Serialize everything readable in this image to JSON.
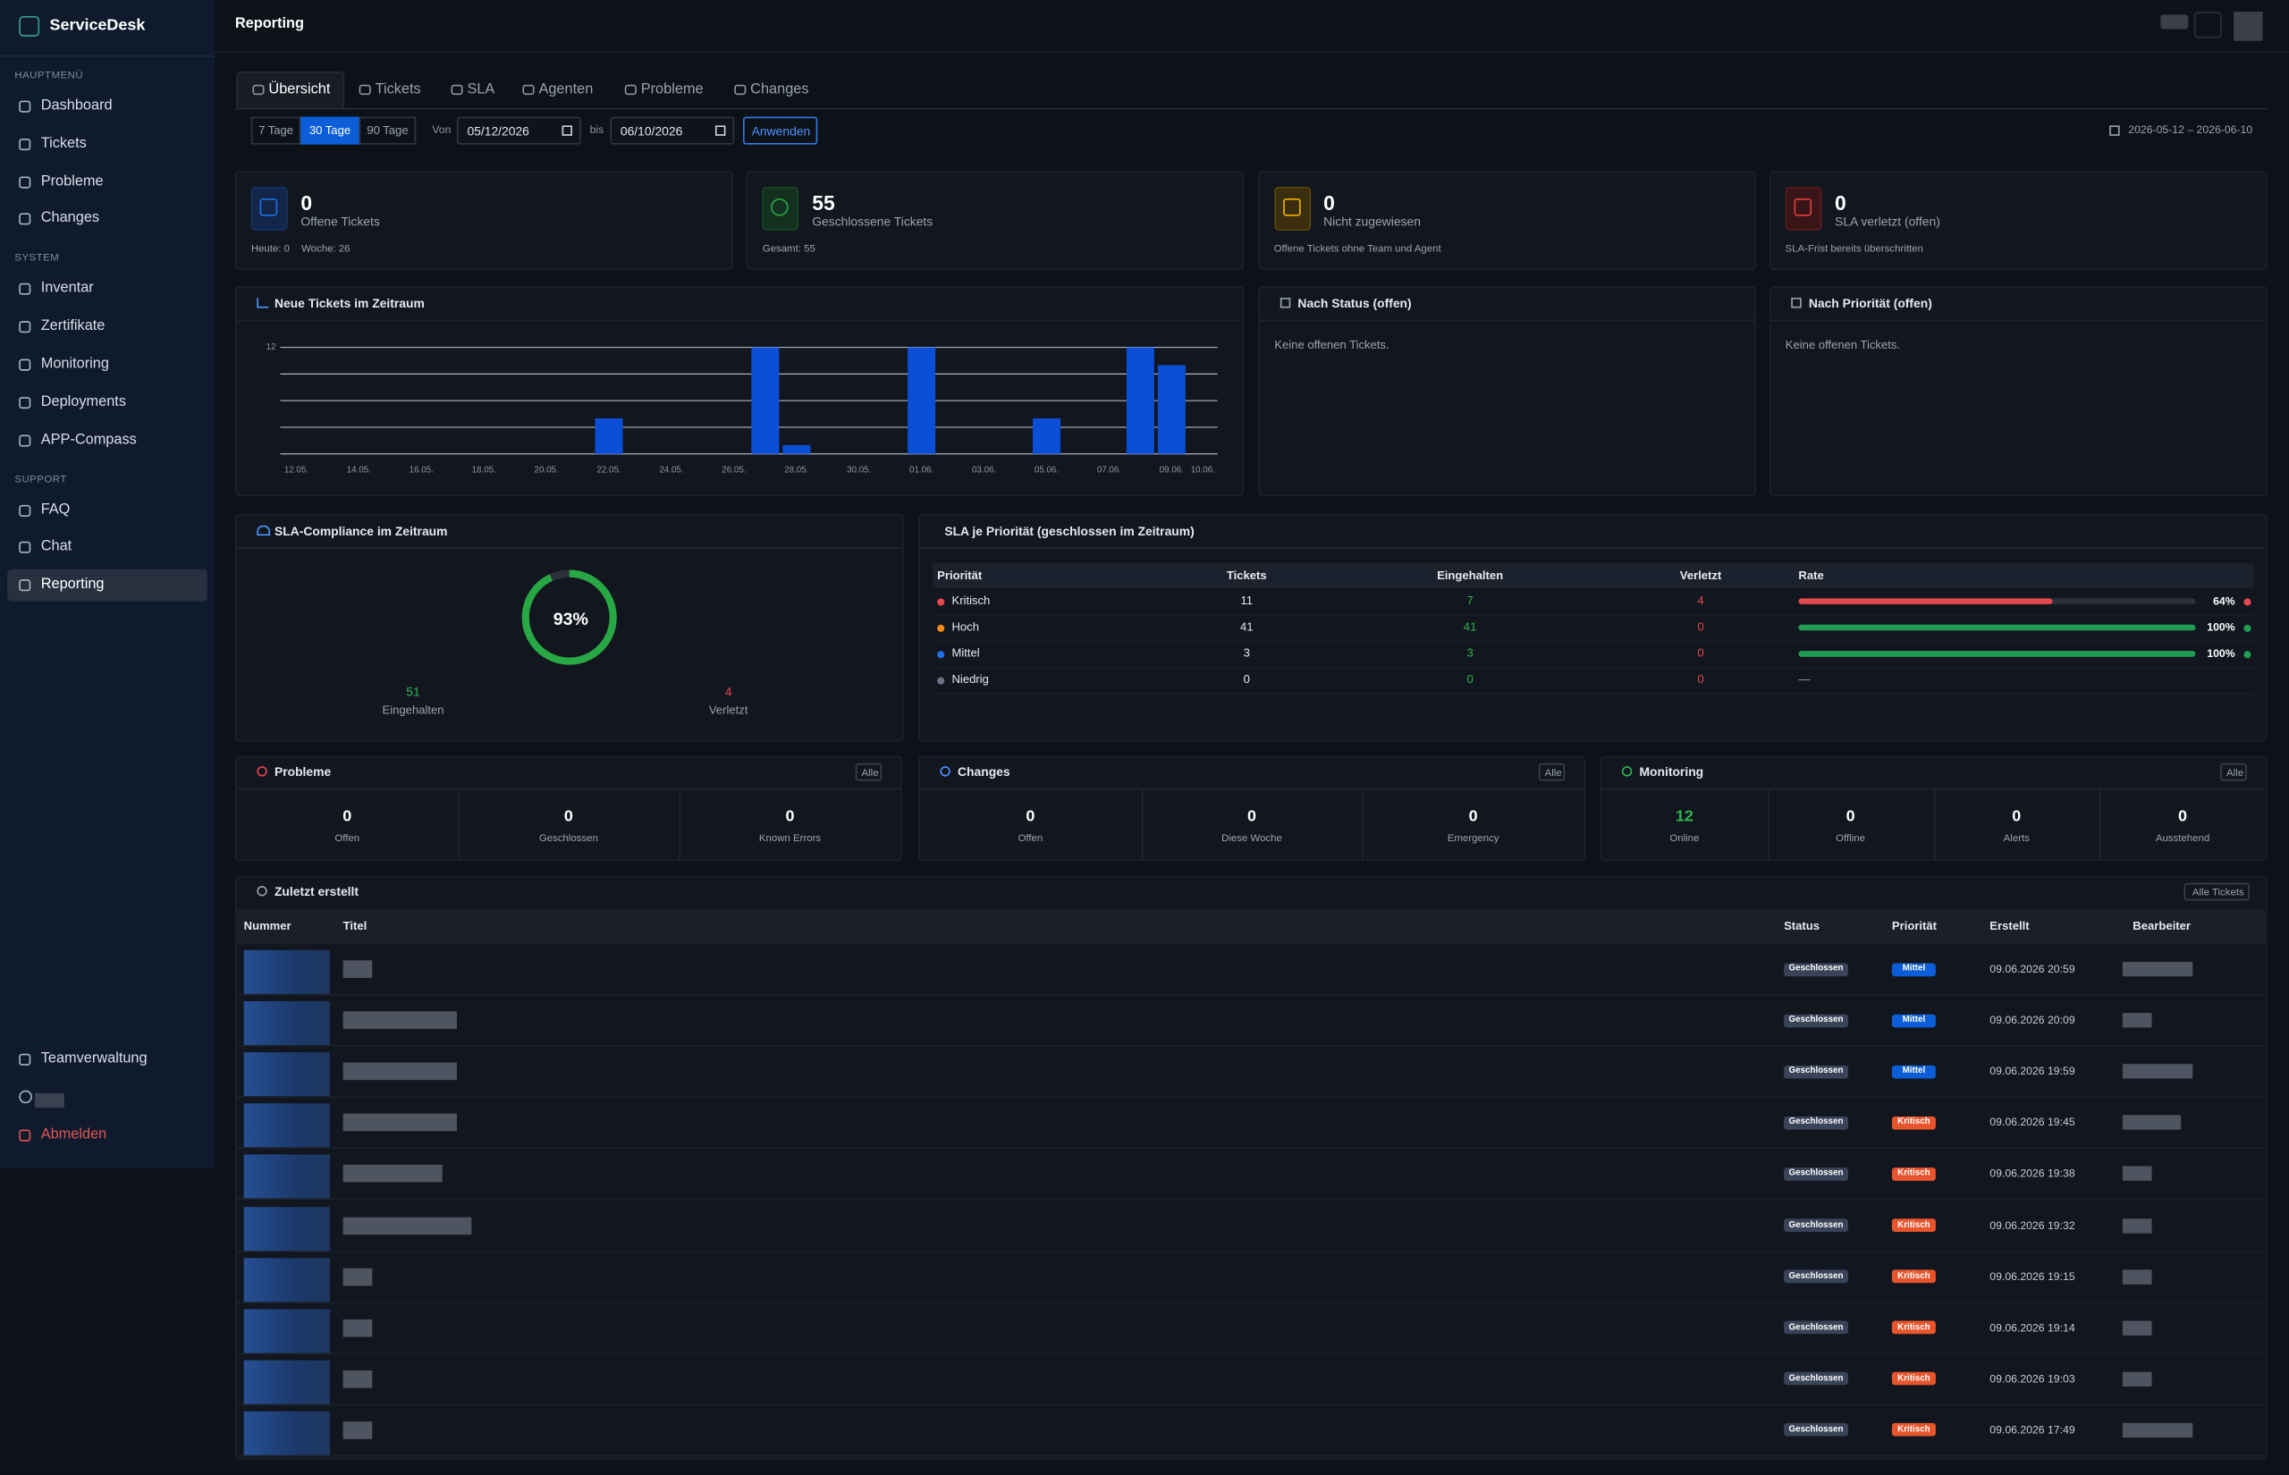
{
  "sidebar": {
    "brand": "ServiceDesk",
    "sections": [
      {
        "label": "HAUPTMENÜ",
        "items": [
          "Dashboard",
          "Tickets",
          "Probleme",
          "Changes"
        ]
      },
      {
        "label": "SYSTEM",
        "items": [
          "Inventar",
          "Zertifikate",
          "Monitoring",
          "Deployments",
          "APP-Compass"
        ]
      },
      {
        "label": "SUPPORT",
        "items": [
          "FAQ",
          "Chat",
          "Reporting"
        ]
      }
    ],
    "active": {
      "section": 2,
      "item": 2
    },
    "footer": {
      "team": "Teamverwaltung",
      "logout": "Abmelden"
    }
  },
  "header": {
    "title": "Reporting"
  },
  "tabs": {
    "items": [
      "Übersicht",
      "Tickets",
      "SLA",
      "Agenten",
      "Probleme",
      "Changes"
    ],
    "active": 0
  },
  "filters": {
    "ranges": [
      "7 Tage",
      "30 Tage",
      "90 Tage"
    ],
    "active": 1,
    "from_label": "Von",
    "from": "05/12/2026",
    "to_label": "bis",
    "to": "06/10/2026",
    "apply": "Anwenden",
    "range_text": "2026-05-12 – 2026-06-10"
  },
  "kpis": [
    {
      "value": 0,
      "label": "Offene Tickets",
      "notes": [
        "Heute: 0",
        "Woche: 26"
      ]
    },
    {
      "value": 55,
      "label": "Geschlossene Tickets",
      "notes": [
        "Gesamt: 55"
      ]
    },
    {
      "value": 0,
      "label": "Nicht zugewiesen",
      "notes": [
        "Offene Tickets ohne Team und Agent"
      ]
    },
    {
      "value": 0,
      "label": "SLA verletzt (offen)",
      "notes": [
        "SLA-Frist bereits überschritten"
      ]
    }
  ],
  "chart_data": {
    "type": "bar",
    "title": "Neue Tickets im Zeitraum",
    "categories": [
      "12.05.",
      null,
      "14.05.",
      null,
      "16.05.",
      null,
      "18.05.",
      null,
      "20.05.",
      null,
      "22.05.",
      null,
      "24.05.",
      null,
      "26.05.",
      null,
      "28.05.",
      null,
      "30.05.",
      null,
      "01.06.",
      null,
      "03.06.",
      null,
      "05.06.",
      null,
      "07.06.",
      null,
      "09.06.",
      "10.06."
    ],
    "values": [
      0,
      0,
      0,
      0,
      0,
      0,
      0,
      0,
      0,
      0,
      4,
      0,
      0,
      0,
      0,
      12,
      1,
      0,
      0,
      0,
      12,
      0,
      0,
      0,
      4,
      0,
      0,
      12,
      10,
      0
    ],
    "color": "#0b4fd6",
    "ylim": [
      0,
      12
    ],
    "yticks": [
      {
        "value": 0,
        "label": null
      },
      {
        "value": 3,
        "label": null
      },
      {
        "value": 6,
        "label": null
      },
      {
        "value": 9,
        "label": null
      },
      12
    ],
    "grid": true
  },
  "status_panel": {
    "title": "Nach Status (offen)",
    "empty": "Keine offenen Tickets."
  },
  "priority_panel": {
    "title": "Nach Priorität (offen)",
    "empty": "Keine offenen Tickets."
  },
  "sla_compliance": {
    "title": "SLA-Compliance im Zeitraum",
    "rate": 93,
    "rate_label": "93%",
    "met": 51,
    "met_label": "Eingehalten",
    "breached": 4,
    "breached_label": "Verletzt"
  },
  "sla_priority": {
    "title": "SLA je Priorität (geschlossen im Zeitraum)",
    "columns": [
      "Priorität",
      "Tickets",
      "Eingehalten",
      "Verletzt",
      "Rate"
    ],
    "rows": [
      {
        "name": "Kritisch",
        "color": "#e5484d",
        "tickets": 11,
        "met": 7,
        "breached": 4,
        "rate": 64,
        "rate_label": "64%"
      },
      {
        "name": "Hoch",
        "color": "#f08c1a",
        "tickets": 41,
        "met": 41,
        "breached": 0,
        "rate": 100,
        "rate_label": "100%"
      },
      {
        "name": "Mittel",
        "color": "#1f6fe5",
        "tickets": 3,
        "met": 3,
        "breached": 0,
        "rate": 100,
        "rate_label": "100%"
      },
      {
        "name": "Niedrig",
        "color": "#6b7385",
        "tickets": 0,
        "met": 0,
        "breached": 0,
        "rate": null,
        "rate_label": "—"
      }
    ]
  },
  "summaries": [
    {
      "title": "Probleme",
      "button": "Alle",
      "stats": [
        {
          "value": 0,
          "label": "Offen"
        },
        {
          "value": 0,
          "label": "Geschlossen"
        },
        {
          "value": 0,
          "label": "Known Errors"
        }
      ]
    },
    {
      "title": "Changes",
      "button": "Alle",
      "stats": [
        {
          "value": 0,
          "label": "Offen"
        },
        {
          "value": 0,
          "label": "Diese Woche"
        },
        {
          "value": 0,
          "label": "Emergency"
        }
      ]
    },
    {
      "title": "Monitoring",
      "button": "Alle",
      "stats": [
        {
          "value": 12,
          "label": "Online"
        },
        {
          "value": 0,
          "label": "Offline"
        },
        {
          "value": 0,
          "label": "Alerts"
        },
        {
          "value": 0,
          "label": "Ausstehend"
        }
      ]
    }
  ],
  "recent": {
    "title": "Zuletzt erstellt",
    "button": "Alle Tickets",
    "columns": [
      "Nummer",
      "Titel",
      "Status",
      "Priorität",
      "Erstellt",
      "Bearbeiter"
    ],
    "rows": [
      {
        "status": "Geschlossen",
        "priority": "Mittel",
        "priority_color": "#0b5ed7",
        "created": "09.06.2026 20:59"
      },
      {
        "status": "Geschlossen",
        "priority": "Mittel",
        "priority_color": "#0b5ed7",
        "created": "09.06.2026 20:09"
      },
      {
        "status": "Geschlossen",
        "priority": "Mittel",
        "priority_color": "#0b5ed7",
        "created": "09.06.2026 19:59"
      },
      {
        "status": "Geschlossen",
        "priority": "Kritisch",
        "priority_color": "#e8552d",
        "created": "09.06.2026 19:45"
      },
      {
        "status": "Geschlossen",
        "priority": "Kritisch",
        "priority_color": "#e8552d",
        "created": "09.06.2026 19:38"
      },
      {
        "status": "Geschlossen",
        "priority": "Kritisch",
        "priority_color": "#e8552d",
        "created": "09.06.2026 19:32"
      },
      {
        "status": "Geschlossen",
        "priority": "Kritisch",
        "priority_color": "#e8552d",
        "created": "09.06.2026 19:15"
      },
      {
        "status": "Geschlossen",
        "priority": "Kritisch",
        "priority_color": "#e8552d",
        "created": "09.06.2026 19:14"
      },
      {
        "status": "Geschlossen",
        "priority": "Kritisch",
        "priority_color": "#e8552d",
        "created": "09.06.2026 19:03"
      },
      {
        "status": "Geschlossen",
        "priority": "Kritisch",
        "priority_color": "#e8552d",
        "created": "09.06.2026 17:49"
      }
    ]
  }
}
